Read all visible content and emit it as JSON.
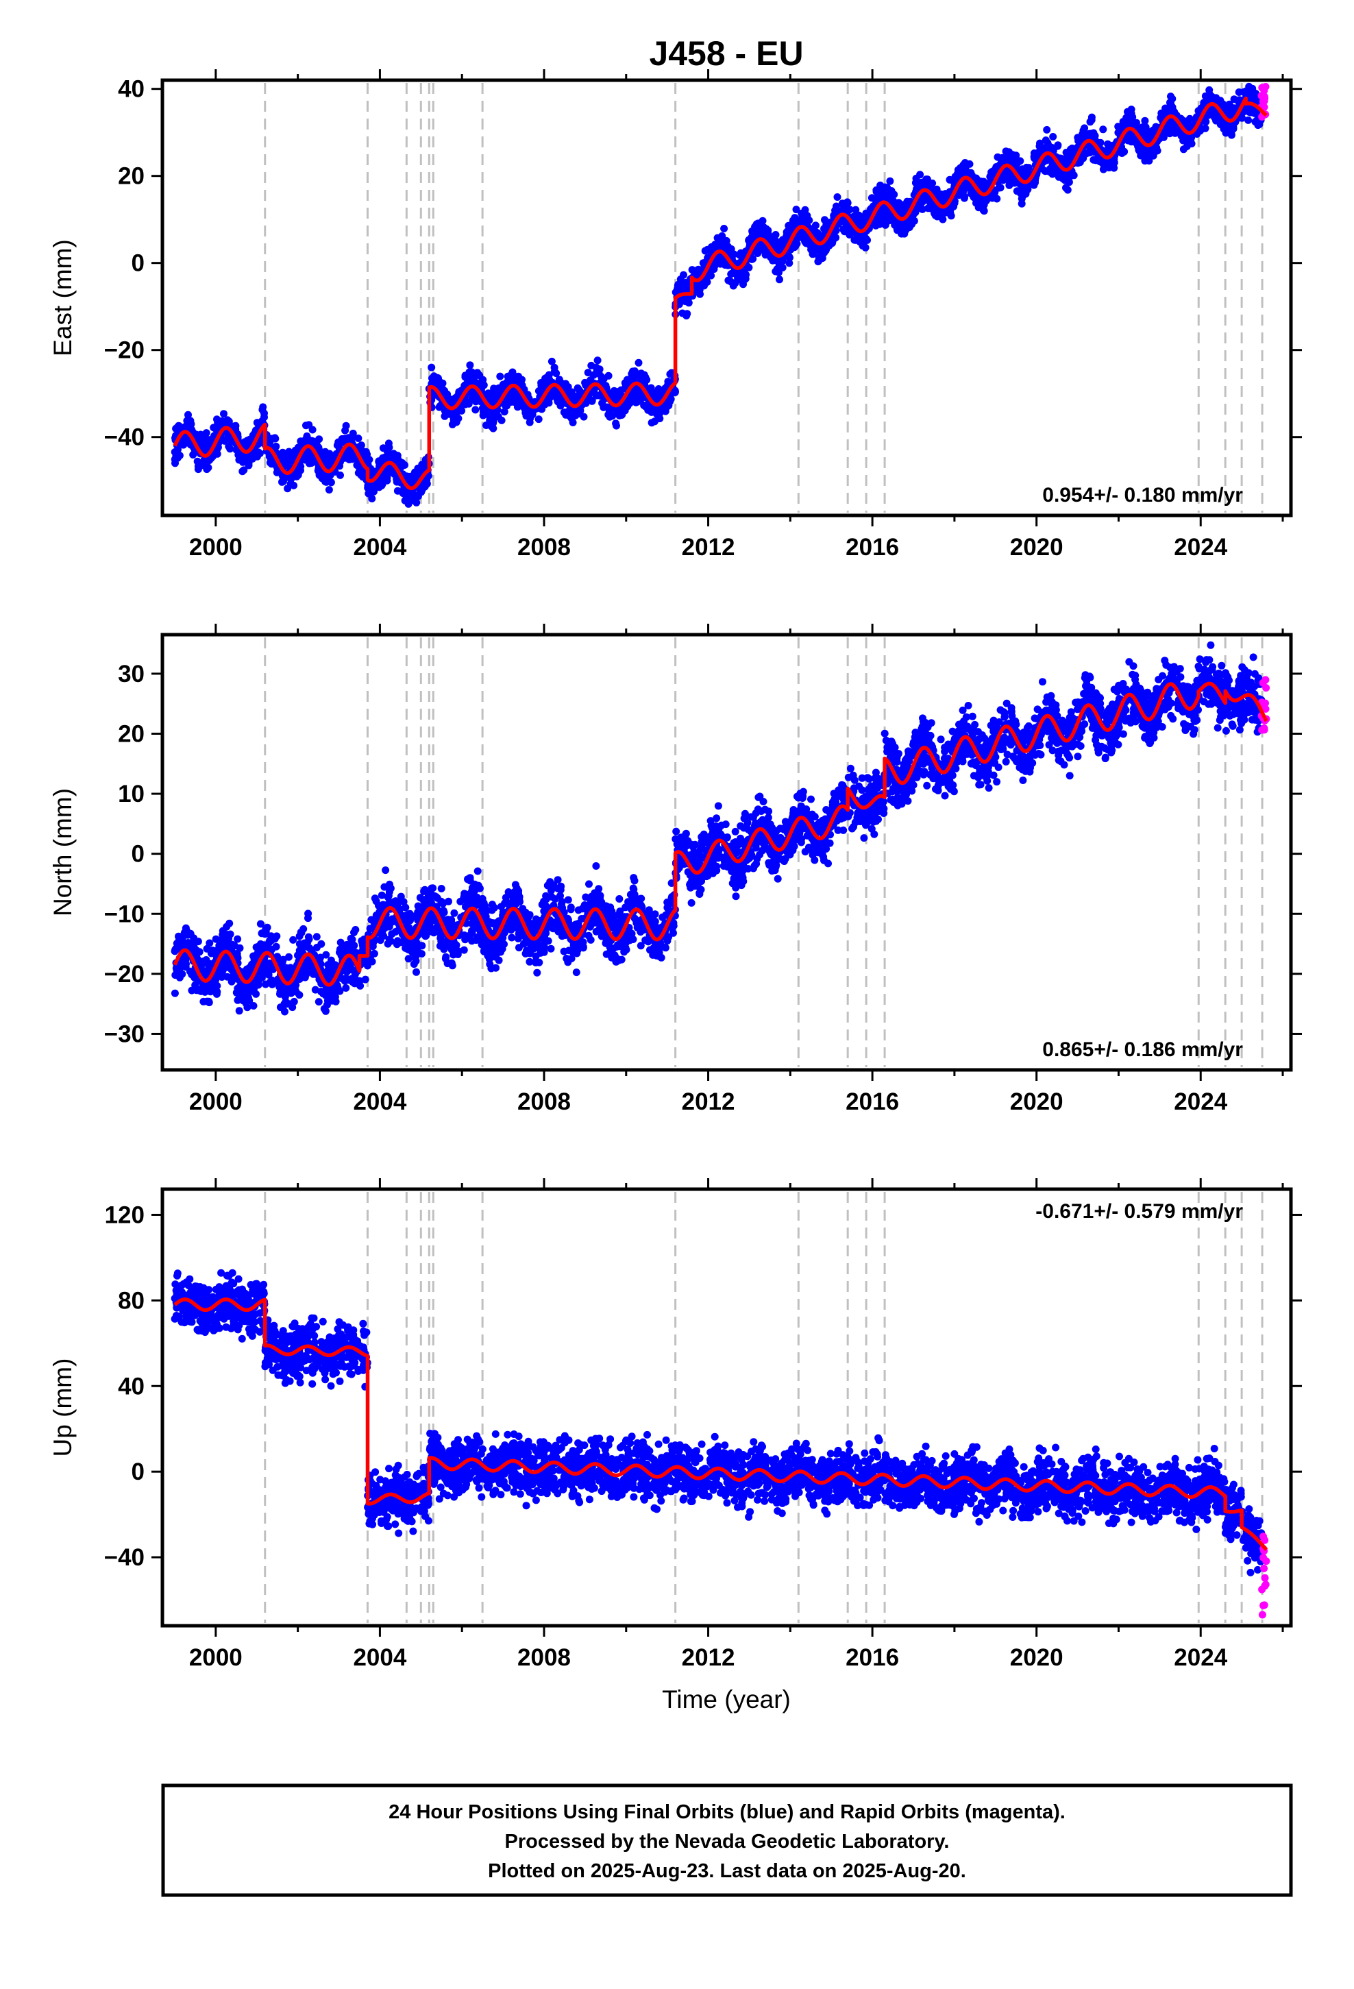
{
  "title": "J458 - EU",
  "xlabel": "Time (year)",
  "footer": {
    "line1": "24 Hour Positions Using Final Orbits (blue) and Rapid Orbits (magenta).",
    "line2": "Processed by the Nevada Geodetic Laboratory.",
    "line3": "Plotted on 2025-Aug-23. Last data on 2025-Aug-20."
  },
  "colors": {
    "final": "#0000ff",
    "rapid": "#ff00ff",
    "model": "#ff0000",
    "steps": "#c0c0c0"
  },
  "chart_data": [
    {
      "type": "scatter",
      "name": "east",
      "ylabel": "East (mm)",
      "rate": "0.954+/- 0.180 mm/yr",
      "rate_placement": "bottom-right",
      "xlim": [
        1998.7,
        2026.2
      ],
      "ylim": [
        -58,
        42
      ],
      "xticks": [
        "2000",
        "2004",
        "2008",
        "2012",
        "2016",
        "2020",
        "2024"
      ],
      "yticks": [
        "40",
        "20",
        "0",
        "−20",
        "−40"
      ],
      "steps": [
        2001.2,
        2003.7,
        2004.65,
        2005.0,
        2005.2,
        2005.3,
        2006.5,
        2011.2,
        2014.2,
        2015.4,
        2015.85,
        2016.3,
        2023.95,
        2024.6,
        2025.0,
        2025.5
      ],
      "model": [
        {
          "x": [
            1999.0,
            2001.2
          ],
          "y": [
            -42,
            -40
          ],
          "amp": 3,
          "ph": 0
        },
        {
          "x": [
            2001.2,
            2003.7
          ],
          "y": [
            -45.5,
            -44.5
          ],
          "amp": 3,
          "ph": 0
        },
        {
          "x": [
            2003.7,
            2005.2
          ],
          "y": [
            -47.5,
            -50
          ],
          "amp": 2.5,
          "ph": 0
        },
        {
          "x": [
            2005.2,
            2011.2
          ],
          "y": [
            -31,
            -30
          ],
          "amp": 2.5,
          "ph": 0
        },
        {
          "x": [
            2011.2,
            2011.6
          ],
          "y": [
            -9,
            -6.5
          ],
          "amp": 1,
          "ph": 0
        },
        {
          "x": [
            2011.6,
            2025.1
          ],
          "y": [
            -1.8,
            36.3
          ],
          "amp": 2.6,
          "ph": 0
        },
        {
          "x": [
            2025.1,
            2025.6
          ],
          "y": [
            36,
            34.5
          ],
          "amp": 1,
          "ph": 0
        }
      ],
      "rapid": {
        "x": [
          2025.48,
          2025.6
        ],
        "y": [
          33,
          41
        ]
      }
    },
    {
      "type": "scatter",
      "name": "north",
      "ylabel": "North (mm)",
      "rate": "0.865+/- 0.186 mm/yr",
      "rate_placement": "bottom-right",
      "xlim": [
        1998.7,
        2026.2
      ],
      "ylim": [
        -36,
        36.5
      ],
      "xticks": [
        "2000",
        "2004",
        "2008",
        "2012",
        "2016",
        "2020",
        "2024"
      ],
      "yticks": [
        "30",
        "20",
        "10",
        "0",
        "−10",
        "−20",
        "−30"
      ],
      "steps": [
        2001.2,
        2003.7,
        2004.65,
        2005.0,
        2005.2,
        2005.3,
        2006.5,
        2011.2,
        2014.2,
        2015.4,
        2015.85,
        2016.3,
        2023.95,
        2024.6,
        2025.0,
        2025.5
      ],
      "model": [
        {
          "x": [
            1999.0,
            2003.5
          ],
          "y": [
            -18.5,
            -19.5
          ],
          "amp": 2.5,
          "ph": 0
        },
        {
          "x": [
            2003.5,
            2003.7
          ],
          "y": [
            -17,
            -16.5
          ],
          "amp": 0.5,
          "ph": 0
        },
        {
          "x": [
            2003.7,
            2011.2
          ],
          "y": [
            -11.5,
            -11.8
          ],
          "amp": 2.5,
          "ph": 0
        },
        {
          "x": [
            2011.2,
            2015.4
          ],
          "y": [
            -2,
            6
          ],
          "amp": 2.2,
          "ph": 0
        },
        {
          "x": [
            2015.4,
            2016.3
          ],
          "y": [
            10,
            8
          ],
          "amp": 1.5,
          "ph": 0
        },
        {
          "x": [
            2016.3,
            2023.95
          ],
          "y": [
            13.5,
            27
          ],
          "amp": 2.5,
          "ph": 0
        },
        {
          "x": [
            2023.95,
            2024.6
          ],
          "y": [
            27.5,
            26
          ],
          "amp": 1.5,
          "ph": 0
        },
        {
          "x": [
            2024.6,
            2025.6
          ],
          "y": [
            28,
            23
          ],
          "amp": 1.5,
          "ph": 0
        }
      ],
      "rapid": {
        "x": [
          2025.48,
          2025.6
        ],
        "y": [
          20.5,
          29.5
        ]
      }
    },
    {
      "type": "scatter",
      "name": "up",
      "ylabel": "Up (mm)",
      "rate": "-0.671+/- 0.579 mm/yr",
      "rate_placement": "top-right",
      "xlim": [
        1998.7,
        2026.2
      ],
      "ylim": [
        -72,
        132
      ],
      "xticks": [
        "2000",
        "2004",
        "2008",
        "2012",
        "2016",
        "2020",
        "2024"
      ],
      "yticks": [
        "120",
        "80",
        "40",
        "0",
        "−40"
      ],
      "steps": [
        2001.2,
        2003.7,
        2004.65,
        2005.0,
        2005.2,
        2005.3,
        2006.5,
        2011.2,
        2014.2,
        2015.4,
        2015.85,
        2016.3,
        2023.95,
        2024.6,
        2025.0,
        2025.5
      ],
      "model": [
        {
          "x": [
            1999.0,
            2001.2
          ],
          "y": [
            78,
            78
          ],
          "amp": 2.5,
          "ph": 0
        },
        {
          "x": [
            2001.2,
            2003.7
          ],
          "y": [
            57,
            56
          ],
          "amp": 2,
          "ph": 0
        },
        {
          "x": [
            2003.7,
            2005.2
          ],
          "y": [
            -13,
            -12
          ],
          "amp": 2,
          "ph": 0
        },
        {
          "x": [
            2005.2,
            2017.9
          ],
          "y": [
            4,
            -5
          ],
          "amp": 2.5,
          "ph": 0
        },
        {
          "x": [
            2017.9,
            2024.6
          ],
          "y": [
            -5,
            -10
          ],
          "amp": 2.5,
          "ph": 0
        },
        {
          "x": [
            2024.6,
            2025.0
          ],
          "y": [
            -18,
            -18
          ],
          "amp": 0.8,
          "ph": 0
        },
        {
          "x": [
            2025.0,
            2025.6
          ],
          "y": [
            -26,
            -36
          ],
          "amp": 0.8,
          "ph": 0
        }
      ],
      "rapid": {
        "x": [
          2025.48,
          2025.6
        ],
        "y": [
          -68,
          -28
        ]
      }
    }
  ]
}
